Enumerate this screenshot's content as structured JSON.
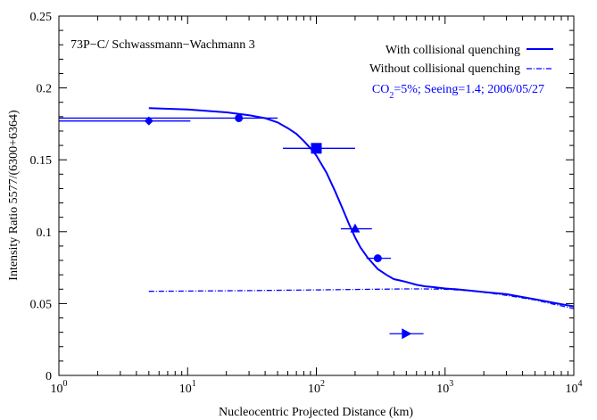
{
  "chart_data": {
    "type": "scatter",
    "title": "73P−C/ Schwassmann−Wachmann 3",
    "xlabel": "Nucleocentric Projected Distance (km)",
    "ylabel": "Intensity Ratio 5577/(6300+6364)",
    "x_scale": "log",
    "xlim": [
      1,
      10000
    ],
    "ylim": [
      0,
      0.25
    ],
    "x_ticks": [
      {
        "value": 1,
        "base": "10",
        "exp": "0"
      },
      {
        "value": 10,
        "base": "10",
        "exp": "1"
      },
      {
        "value": 100,
        "base": "10",
        "exp": "2"
      },
      {
        "value": 1000,
        "base": "10",
        "exp": "3"
      },
      {
        "value": 10000,
        "base": "10",
        "exp": "4"
      }
    ],
    "y_ticks": [
      {
        "value": 0,
        "label": "0"
      },
      {
        "value": 0.05,
        "label": "0.05"
      },
      {
        "value": 0.1,
        "label": "0.1"
      },
      {
        "value": 0.15,
        "label": "0.15"
      },
      {
        "value": 0.2,
        "label": "0.2"
      },
      {
        "value": 0.25,
        "label": "0.25"
      }
    ],
    "grid": false,
    "legend_position": "top-right",
    "color": "#0000ff",
    "legend": [
      {
        "label": "With collisional quenching",
        "style": "solid"
      },
      {
        "label": "Without collisional quenching",
        "style": "dash-dot"
      }
    ],
    "annotation": {
      "pre": "CO",
      "sub": "2",
      "post": "=5%; Seeing=1.4; 2006/05/27"
    },
    "series": [
      {
        "name": "With collisional quenching",
        "kind": "line",
        "style": "solid",
        "x": [
          5,
          10,
          20,
          30,
          40,
          50,
          60,
          70,
          80,
          90,
          100,
          120,
          140,
          160,
          180,
          200,
          220,
          250,
          280,
          300,
          350,
          400,
          450,
          500,
          600,
          700,
          800,
          900,
          1000,
          1200,
          1500,
          2000,
          3000,
          5000,
          7000,
          10000
        ],
        "y": [
          0.186,
          0.185,
          0.183,
          0.181,
          0.179,
          0.176,
          0.172,
          0.168,
          0.163,
          0.158,
          0.153,
          0.141,
          0.128,
          0.116,
          0.105,
          0.096,
          0.089,
          0.082,
          0.077,
          0.074,
          0.07,
          0.067,
          0.066,
          0.065,
          0.063,
          0.062,
          0.0615,
          0.061,
          0.0605,
          0.06,
          0.0592,
          0.058,
          0.0565,
          0.053,
          0.0505,
          0.048
        ]
      },
      {
        "name": "Without collisional quenching",
        "kind": "line",
        "style": "dash-dot",
        "x": [
          5,
          10,
          30,
          100,
          300,
          500,
          700,
          1000,
          1500,
          2000,
          3000,
          5000,
          7000,
          10000
        ],
        "y": [
          0.0585,
          0.0587,
          0.059,
          0.0595,
          0.06,
          0.0602,
          0.0602,
          0.06,
          0.059,
          0.0578,
          0.0557,
          0.0525,
          0.0495,
          0.0465
        ]
      },
      {
        "kind": "points",
        "points": [
          {
            "x": 5,
            "y": 0.177,
            "xerr": [
              1.0,
              10.5
            ],
            "marker": "diamond"
          },
          {
            "x": 25,
            "y": 0.179,
            "xerr": [
              1.0,
              50.0
            ],
            "marker": "circle"
          },
          {
            "x": 100,
            "y": 0.158,
            "xerr": [
              55,
              200
            ],
            "marker": "square"
          },
          {
            "x": 200,
            "y": 0.102,
            "xerr": [
              155,
              270
            ],
            "marker": "triangle"
          },
          {
            "x": 300,
            "y": 0.0815,
            "xerr": [
              245,
              380
            ],
            "marker": "circle"
          },
          {
            "x": 500,
            "y": 0.029,
            "xerr": [
              370,
              680
            ],
            "marker": "arrow-right"
          }
        ]
      }
    ]
  }
}
